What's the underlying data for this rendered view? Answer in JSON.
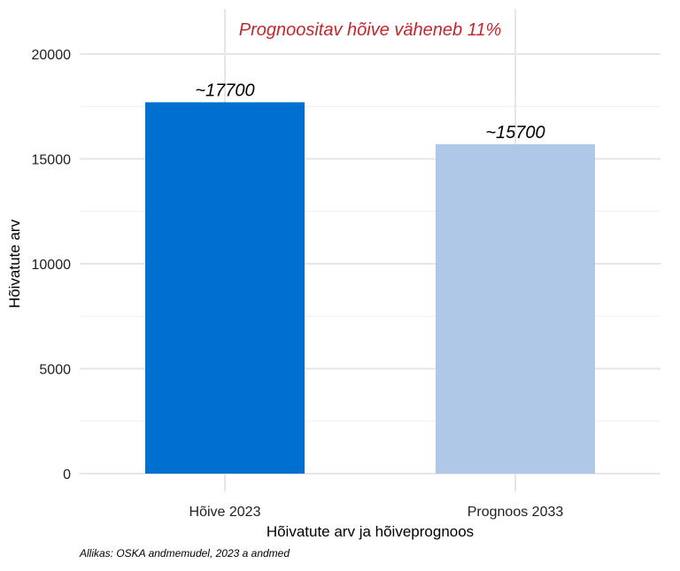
{
  "chart_data": {
    "type": "bar",
    "title": "",
    "annotation": "Prognoositav hõive väheneb 11%",
    "categories": [
      "Hõive 2023",
      "Prognoos 2033"
    ],
    "values": [
      17700,
      15700
    ],
    "value_labels": [
      "~17700",
      "~15700"
    ],
    "bar_colors": [
      "#0070d0",
      "#b0c8e8"
    ],
    "annotation_color": "#c0282d",
    "xlabel": "Hõivatute arv ja hõiveprognoos",
    "ylabel": "Hõivatute arv",
    "ylim": [
      0,
      20000
    ],
    "yticks": [
      0,
      5000,
      10000,
      15000,
      20000
    ],
    "ytick_labels": [
      "0",
      "5000",
      "10000",
      "15000",
      "20000"
    ],
    "grid": true,
    "legend": "none"
  },
  "caption": "Allikas: OSKA andmemudel, 2023 a andmed"
}
